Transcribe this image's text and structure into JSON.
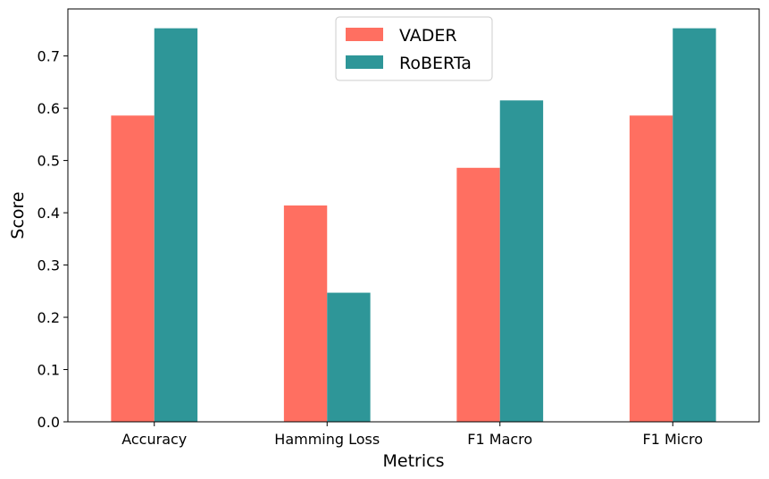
{
  "chart_data": {
    "type": "bar",
    "categories": [
      "Accuracy",
      "Hamming Loss",
      "F1 Macro",
      "F1 Micro"
    ],
    "series": [
      {
        "name": "VADER",
        "values": [
          0.586,
          0.414,
          0.486,
          0.586
        ],
        "color": "#FF6F61"
      },
      {
        "name": "RoBERTa",
        "values": [
          0.753,
          0.247,
          0.615,
          0.753
        ],
        "color": "#2E9698"
      }
    ],
    "title": "",
    "xlabel": "Metrics",
    "ylabel": "Score",
    "ylim": [
      0,
      0.79
    ],
    "yticks": [
      "0.0",
      "0.1",
      "0.2",
      "0.3",
      "0.4",
      "0.5",
      "0.6",
      "0.7"
    ],
    "grid": false,
    "legend_position": "top-center"
  }
}
